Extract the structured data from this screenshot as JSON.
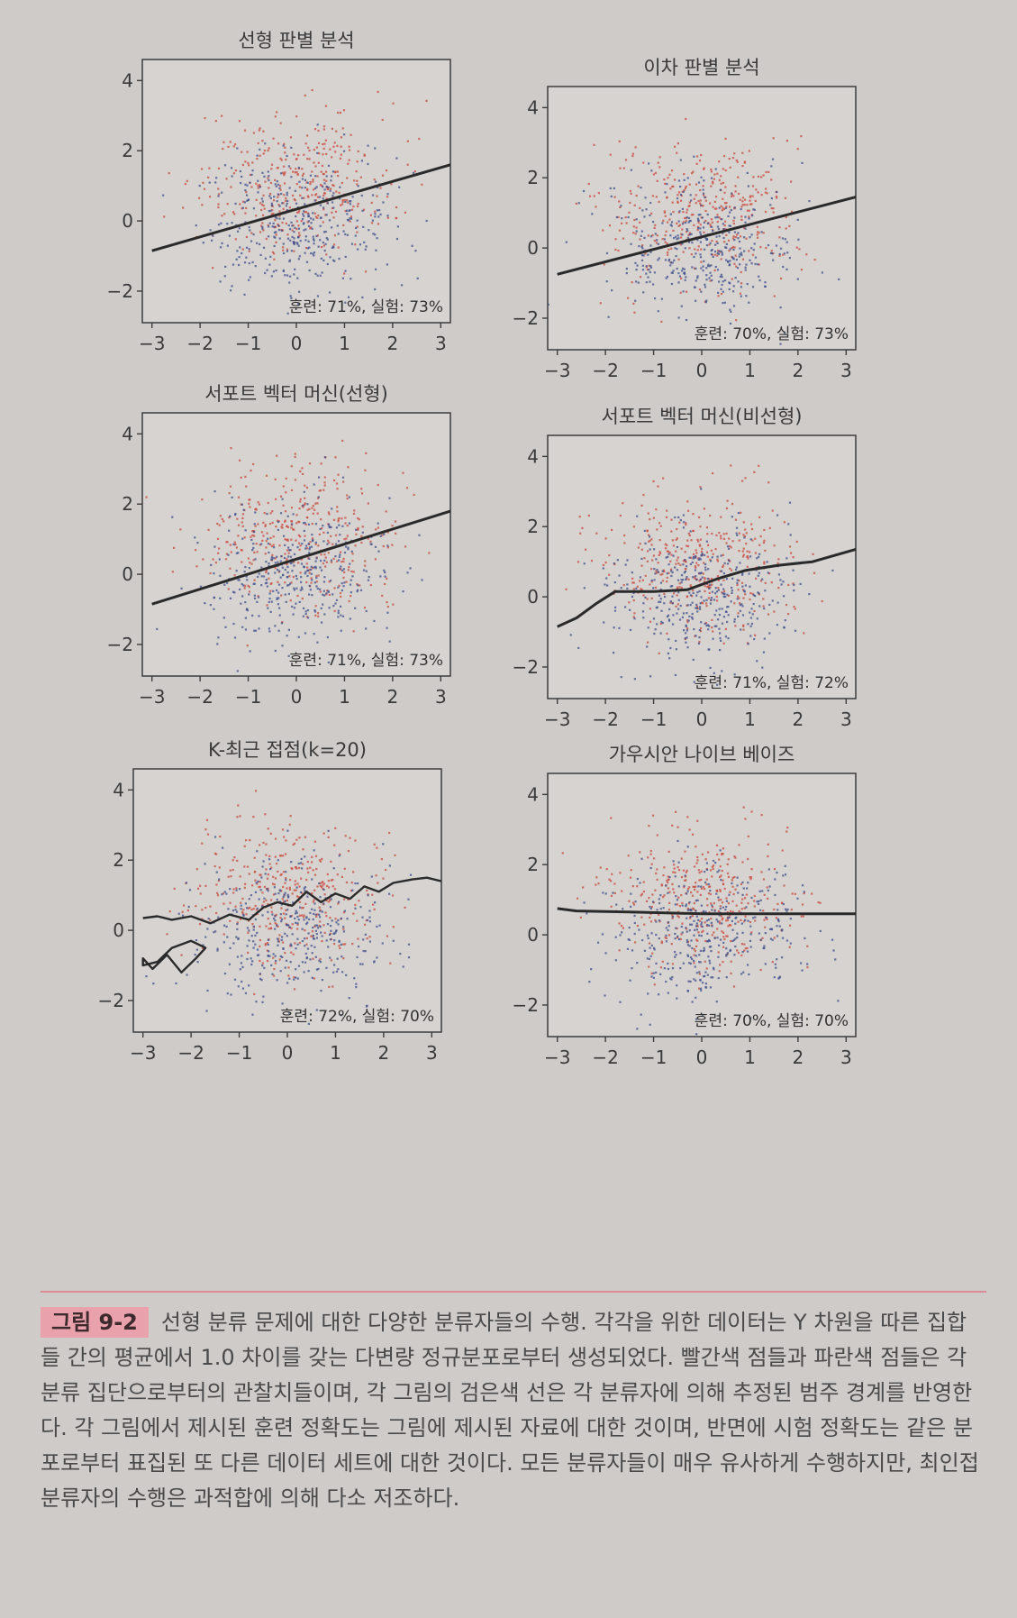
{
  "chart_data": [
    {
      "id": "lda",
      "type": "scatter",
      "title": "선형 판별 분석",
      "accuracy_text": "훈련: 71%, 실험: 73%",
      "xlim": [
        -3.2,
        3.2
      ],
      "ylim": [
        -2.9,
        4.6
      ],
      "x_ticks": [
        -3,
        -2,
        -1,
        0,
        1,
        2,
        3
      ],
      "y_ticks": [
        -2,
        0,
        2,
        4
      ],
      "series": [
        {
          "name": "",
          "color": "#c84a3c",
          "distribution": {
            "mean": [
              0,
              1
            ],
            "sd": [
              1,
              1
            ]
          }
        },
        {
          "name": "",
          "color": "#3f4e8c",
          "distribution": {
            "mean": [
              0,
              0
            ],
            "sd": [
              1,
              1
            ]
          }
        }
      ],
      "boundary": [
        [
          -3,
          -0.85
        ],
        [
          3.2,
          1.6
        ]
      ],
      "grid": false
    },
    {
      "id": "qda",
      "type": "scatter",
      "title": "이차 판별 분석",
      "accuracy_text": "훈련: 70%, 실험: 73%",
      "xlim": [
        -3.2,
        3.2
      ],
      "ylim": [
        -2.9,
        4.6
      ],
      "x_ticks": [
        -3,
        -2,
        -1,
        0,
        1,
        2,
        3
      ],
      "y_ticks": [
        -2,
        0,
        2,
        4
      ],
      "series": [
        {
          "name": "",
          "color": "#c84a3c",
          "distribution": {
            "mean": [
              0,
              1
            ],
            "sd": [
              1,
              1
            ]
          }
        },
        {
          "name": "",
          "color": "#3f4e8c",
          "distribution": {
            "mean": [
              0,
              0
            ],
            "sd": [
              1,
              1
            ]
          }
        }
      ],
      "boundary": [
        [
          -3,
          -0.75
        ],
        [
          3.2,
          1.45
        ]
      ],
      "grid": false
    },
    {
      "id": "svm-linear",
      "type": "scatter",
      "title": "서포트 벡터 머신(선형)",
      "accuracy_text": "훈련: 71%, 실험: 73%",
      "xlim": [
        -3.2,
        3.2
      ],
      "ylim": [
        -2.9,
        4.6
      ],
      "x_ticks": [
        -3,
        -2,
        -1,
        0,
        1,
        2,
        3
      ],
      "y_ticks": [
        -2,
        0,
        2,
        4
      ],
      "series": [
        {
          "name": "",
          "color": "#c84a3c",
          "distribution": {
            "mean": [
              0,
              1
            ],
            "sd": [
              1,
              1
            ]
          }
        },
        {
          "name": "",
          "color": "#3f4e8c",
          "distribution": {
            "mean": [
              0,
              0
            ],
            "sd": [
              1,
              1
            ]
          }
        }
      ],
      "boundary": [
        [
          -3,
          -0.85
        ],
        [
          3.2,
          1.8
        ]
      ],
      "grid": false
    },
    {
      "id": "svm-nonlinear",
      "type": "scatter",
      "title": "서포트 벡터 머신(비선형)",
      "accuracy_text": "훈련: 71%, 실험: 72%",
      "xlim": [
        -3.2,
        3.2
      ],
      "ylim": [
        -2.9,
        4.6
      ],
      "x_ticks": [
        -3,
        -2,
        -1,
        0,
        1,
        2,
        3
      ],
      "y_ticks": [
        -2,
        0,
        2,
        4
      ],
      "series": [
        {
          "name": "",
          "color": "#c84a3c",
          "distribution": {
            "mean": [
              0,
              1
            ],
            "sd": [
              1,
              1
            ]
          }
        },
        {
          "name": "",
          "color": "#3f4e8c",
          "distribution": {
            "mean": [
              0,
              0
            ],
            "sd": [
              1,
              1
            ]
          }
        }
      ],
      "boundary": [
        [
          -3,
          -0.85
        ],
        [
          -2.6,
          -0.6
        ],
        [
          -2.2,
          -0.2
        ],
        [
          -1.8,
          0.15
        ],
        [
          -1.0,
          0.15
        ],
        [
          -0.3,
          0.2
        ],
        [
          0.3,
          0.5
        ],
        [
          0.9,
          0.75
        ],
        [
          1.6,
          0.9
        ],
        [
          2.3,
          1.0
        ],
        [
          3.2,
          1.35
        ]
      ],
      "grid": false
    },
    {
      "id": "knn",
      "type": "scatter",
      "title": "K-최근 접점(k=20)",
      "accuracy_text": "훈련: 72%, 실험: 70%",
      "xlim": [
        -3.2,
        3.2
      ],
      "ylim": [
        -2.9,
        4.6
      ],
      "x_ticks": [
        -3,
        -2,
        -1,
        0,
        1,
        2,
        3
      ],
      "y_ticks": [
        -2,
        0,
        2,
        4
      ],
      "series": [
        {
          "name": "",
          "color": "#c84a3c",
          "distribution": {
            "mean": [
              0,
              1
            ],
            "sd": [
              1,
              1
            ]
          }
        },
        {
          "name": "",
          "color": "#3f4e8c",
          "distribution": {
            "mean": [
              0,
              0
            ],
            "sd": [
              1,
              1
            ]
          }
        }
      ],
      "boundary_style": "irregular",
      "boundary": [
        [
          -3,
          0.35
        ],
        [
          -2.7,
          0.4
        ],
        [
          -2.4,
          0.3
        ],
        [
          -2.0,
          0.4
        ],
        [
          -1.6,
          0.2
        ],
        [
          -1.2,
          0.45
        ],
        [
          -0.8,
          0.3
        ],
        [
          -0.5,
          0.65
        ],
        [
          -0.2,
          0.8
        ],
        [
          0.1,
          0.7
        ],
        [
          0.4,
          1.1
        ],
        [
          0.7,
          0.8
        ],
        [
          1.0,
          1.05
        ],
        [
          1.3,
          0.9
        ],
        [
          1.6,
          1.25
        ],
        [
          1.9,
          1.1
        ],
        [
          2.2,
          1.35
        ],
        [
          2.6,
          1.45
        ],
        [
          2.9,
          1.5
        ],
        [
          3.2,
          1.4
        ]
      ],
      "boundary_secondary": [
        [
          -3.0,
          -0.8
        ],
        [
          -2.8,
          -1.1
        ],
        [
          -2.5,
          -0.7
        ],
        [
          -2.2,
          -1.2
        ],
        [
          -1.9,
          -0.8
        ],
        [
          -1.7,
          -0.5
        ],
        [
          -2.0,
          -0.3
        ],
        [
          -2.4,
          -0.5
        ],
        [
          -2.7,
          -0.9
        ],
        [
          -3.0,
          -1.0
        ]
      ],
      "grid": false
    },
    {
      "id": "naive-bayes",
      "type": "scatter",
      "title": "가우시안 나이브 베이즈",
      "accuracy_text": "훈련: 70%, 실험: 70%",
      "xlim": [
        -3.2,
        3.2
      ],
      "ylim": [
        -2.9,
        4.6
      ],
      "x_ticks": [
        -3,
        -2,
        -1,
        0,
        1,
        2,
        3
      ],
      "y_ticks": [
        -2,
        0,
        2,
        4
      ],
      "series": [
        {
          "name": "",
          "color": "#c84a3c",
          "distribution": {
            "mean": [
              0,
              1
            ],
            "sd": [
              1,
              1
            ]
          }
        },
        {
          "name": "",
          "color": "#3f4e8c",
          "distribution": {
            "mean": [
              0,
              0
            ],
            "sd": [
              1,
              1
            ]
          }
        }
      ],
      "boundary": [
        [
          -3,
          0.75
        ],
        [
          -2.6,
          0.68
        ],
        [
          -1.5,
          0.65
        ],
        [
          0,
          0.6
        ],
        [
          1.5,
          0.6
        ],
        [
          3.2,
          0.6
        ]
      ],
      "grid": false
    }
  ],
  "caption": {
    "label": "그림 9-2",
    "text": "선형 분류 문제에 대한 다양한 분류자들의 수행. 각각을 위한 데이터는 Y 차원을 따른 집합들 간의 평균에서 1.0 차이를 갖는 다변량 정규분포로부터 생성되었다. 빨간색 점들과 파란색 점들은 각 분류 집단으로부터의 관찰치들이며, 각 그림의 검은색 선은 각 분류자에 의해 추정된 범주 경계를 반영한다. 각 그림에서 제시된 훈련 정확도는 그림에 제시된 자료에 대한 것이며, 반면에 시험 정확도는 같은 분포로부터 표집된 또 다른 데이터 세트에 대한 것이다. 모든 분류자들이 매우 유사하게 수행하지만, 최인접 분류자의 수행은 과적합에 의해 다소 저조하다."
  }
}
